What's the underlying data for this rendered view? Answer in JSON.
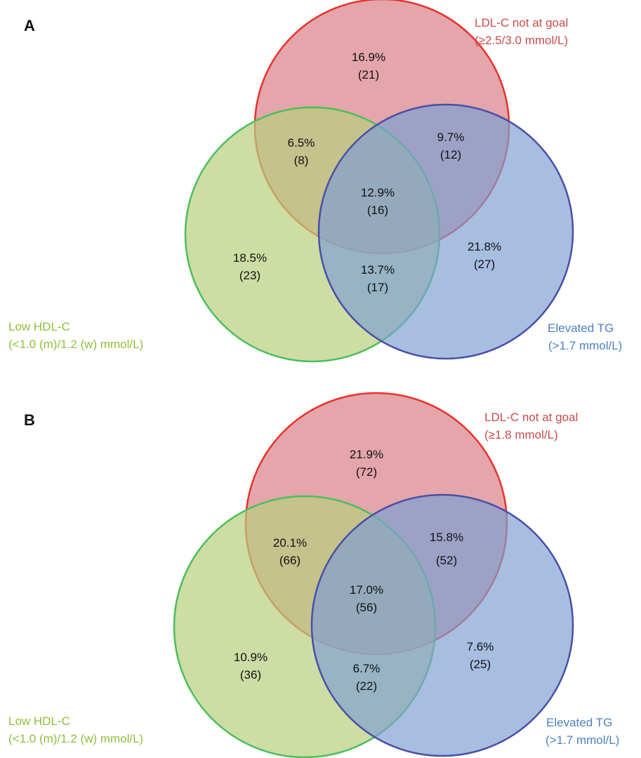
{
  "colors": {
    "ldl_fill": "#d9828a",
    "ldl_stroke": "#e8322a",
    "ldl_text": "#cc4a4a",
    "hdl_fill": "#b8cf7e",
    "hdl_stroke": "#4bbf5c",
    "hdl_text": "#8fbf3c",
    "tg_fill": "#7e9fd3",
    "tg_stroke": "#4a4fa6",
    "tg_text": "#4e7fc0"
  },
  "panels": [
    {
      "letter": "A",
      "sets": {
        "ldl": {
          "line1": "LDL-C not at goal",
          "line2": "(≥2.5/3.0 mmol/L)"
        },
        "hdl": {
          "line1": "Low HDL-C",
          "line2": "(<1.0 (m)/1.2 (w) mmol/L)"
        },
        "tg": {
          "line1": "Elevated TG",
          "line2": "(>1.7 mmol/L)"
        }
      },
      "regions": {
        "ldl_only": {
          "pct": "16.9%",
          "n": "(21)"
        },
        "ldl_hdl": {
          "pct": "6.5%",
          "n": "(8)"
        },
        "ldl_tg": {
          "pct": "9.7%",
          "n": "(12)"
        },
        "all": {
          "pct": "12.9%",
          "n": "(16)"
        },
        "hdl_only": {
          "pct": "18.5%",
          "n": "(23)"
        },
        "hdl_tg": {
          "pct": "13.7%",
          "n": "(17)"
        },
        "tg_only": {
          "pct": "21.8%",
          "n": "(27)"
        }
      }
    },
    {
      "letter": "B",
      "sets": {
        "ldl": {
          "line1": "LDL-C not at goal",
          "line2": "(≥1.8 mmol/L)"
        },
        "hdl": {
          "line1": "Low HDL-C",
          "line2": "(<1.0 (m)/1.2 (w) mmol/L)"
        },
        "tg": {
          "line1": "Elevated TG",
          "line2": "(>1.7 mmol/L)"
        }
      },
      "regions": {
        "ldl_only": {
          "pct": "21.9%",
          "n": "(72)"
        },
        "ldl_hdl": {
          "pct": "20.1%",
          "n": "(66)"
        },
        "ldl_tg": {
          "pct": "15.8%",
          "n": "(52)"
        },
        "all": {
          "pct": "17.0%",
          "n": "(56)"
        },
        "hdl_only": {
          "pct": "10.9%",
          "n": "(36)"
        },
        "hdl_tg": {
          "pct": "6.7%",
          "n": "(22)"
        },
        "tg_only": {
          "pct": "7.6%",
          "n": "(25)"
        }
      }
    }
  ]
}
